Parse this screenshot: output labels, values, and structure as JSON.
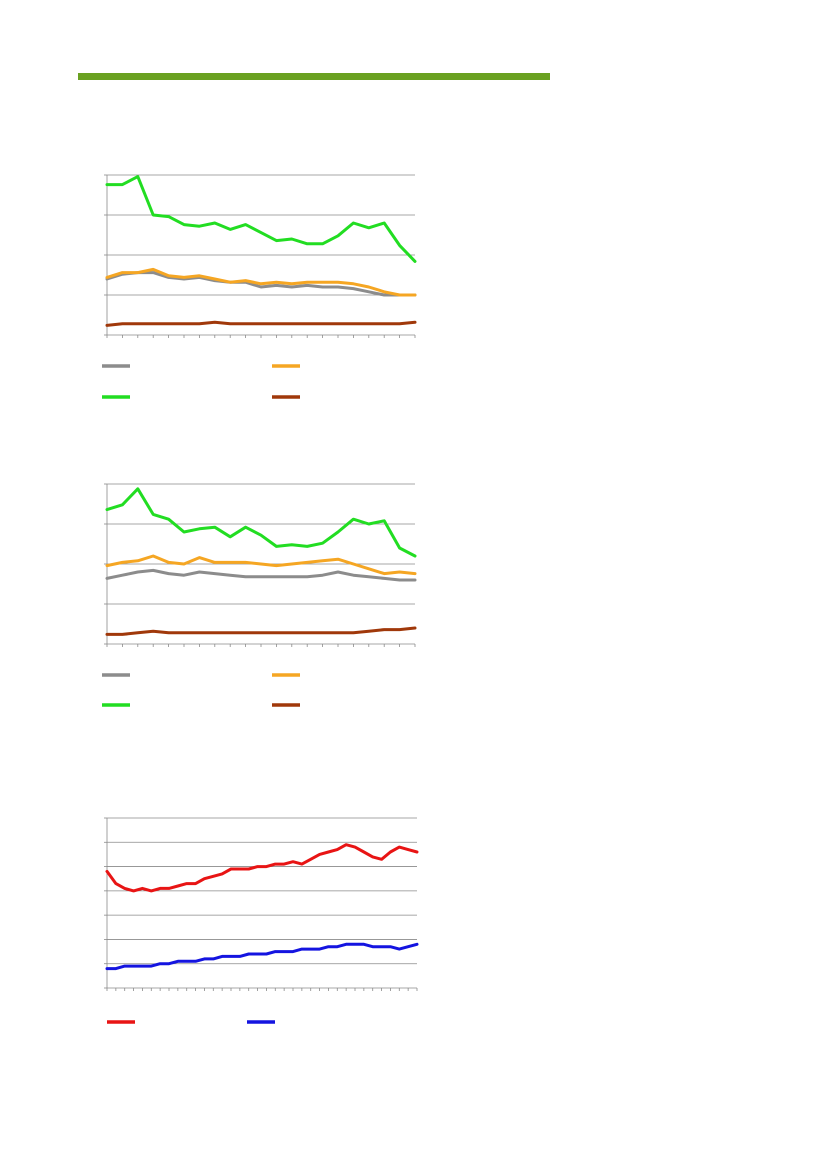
{
  "page": {
    "accent_color": "#6aa121"
  },
  "chart_data": [
    {
      "type": "line",
      "x": [
        1,
        2,
        3,
        4,
        5,
        6,
        7,
        8,
        9,
        10,
        11,
        12,
        13,
        14,
        15,
        16,
        17,
        18,
        19,
        20,
        21
      ],
      "ylim": [
        0,
        100
      ],
      "grid": true,
      "legend_placement": "bottom",
      "series": [
        {
          "color": "#8c8c8c",
          "values": [
            35,
            38,
            39,
            39,
            36,
            35,
            36,
            34,
            33,
            33,
            30,
            31,
            30,
            31,
            30,
            30,
            29,
            27,
            25,
            25,
            25
          ]
        },
        {
          "color": "#f5a623",
          "values": [
            36,
            39,
            39,
            41,
            37,
            36,
            37,
            35,
            33,
            34,
            32,
            33,
            32,
            33,
            33,
            33,
            32,
            30,
            27,
            25,
            25
          ]
        },
        {
          "color": "#22dd22",
          "values": [
            94,
            94,
            99,
            75,
            74,
            69,
            68,
            70,
            66,
            69,
            64,
            59,
            60,
            57,
            57,
            62,
            70,
            67,
            70,
            56,
            46
          ]
        },
        {
          "color": "#a0380a",
          "values": [
            6,
            7,
            7,
            7,
            7,
            7,
            7,
            8,
            7,
            7,
            7,
            7,
            7,
            7,
            7,
            7,
            7,
            7,
            7,
            7,
            8
          ]
        }
      ]
    },
    {
      "type": "line",
      "x": [
        1,
        2,
        3,
        4,
        5,
        6,
        7,
        8,
        9,
        10,
        11,
        12,
        13,
        14,
        15,
        16,
        17,
        18,
        19,
        20,
        21
      ],
      "ylim": [
        0,
        100
      ],
      "grid": true,
      "legend_placement": "bottom",
      "series": [
        {
          "color": "#8c8c8c",
          "values": [
            41,
            43,
            45,
            46,
            44,
            43,
            45,
            44,
            43,
            42,
            42,
            42,
            42,
            42,
            43,
            45,
            43,
            42,
            41,
            40,
            40
          ]
        },
        {
          "color": "#f5a623",
          "values": [
            49,
            51,
            52,
            55,
            51,
            50,
            54,
            51,
            51,
            51,
            50,
            49,
            50,
            51,
            52,
            53,
            50,
            47,
            44,
            45,
            44
          ]
        },
        {
          "color": "#22dd22",
          "values": [
            84,
            87,
            97,
            81,
            78,
            70,
            72,
            73,
            67,
            73,
            68,
            61,
            62,
            61,
            63,
            70,
            78,
            75,
            77,
            60,
            55
          ]
        },
        {
          "color": "#a0380a",
          "values": [
            6,
            6,
            7,
            8,
            7,
            7,
            7,
            7,
            7,
            7,
            7,
            7,
            7,
            7,
            7,
            7,
            7,
            8,
            9,
            9,
            10
          ]
        }
      ]
    },
    {
      "type": "line",
      "x": [
        1,
        2,
        3,
        4,
        5,
        6,
        7,
        8,
        9,
        10,
        11,
        12,
        13,
        14,
        15,
        16,
        17,
        18,
        19,
        20,
        21,
        22,
        23,
        24,
        25,
        26,
        27,
        28,
        29,
        30,
        31,
        32,
        33,
        34,
        35,
        36
      ],
      "ylim": [
        0,
        70
      ],
      "grid": true,
      "legend_placement": "bottom",
      "series": [
        {
          "color": "#e81414",
          "values": [
            48,
            43,
            41,
            40,
            41,
            40,
            41,
            41,
            42,
            43,
            43,
            45,
            46,
            47,
            49,
            49,
            49,
            50,
            50,
            51,
            51,
            52,
            51,
            53,
            55,
            56,
            57,
            59,
            58,
            56,
            54,
            53,
            56,
            58,
            57,
            56
          ]
        },
        {
          "color": "#1414e0",
          "values": [
            8,
            8,
            9,
            9,
            9,
            9,
            10,
            10,
            11,
            11,
            11,
            12,
            12,
            13,
            13,
            13,
            14,
            14,
            14,
            15,
            15,
            15,
            16,
            16,
            16,
            17,
            17,
            18,
            18,
            18,
            17,
            17,
            17,
            16,
            17,
            18
          ]
        }
      ]
    }
  ]
}
